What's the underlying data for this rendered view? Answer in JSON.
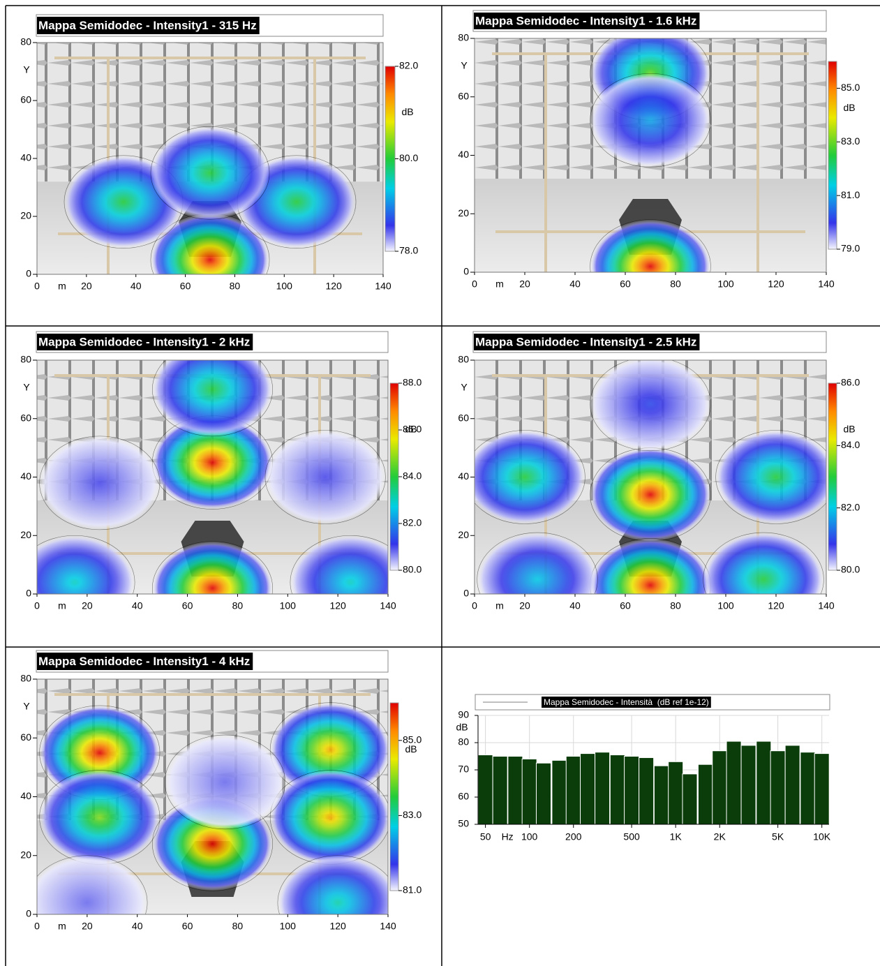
{
  "chart_data": [
    {
      "type": "heatmap",
      "title": "Mappa Semidodec - Intensity1 - 315 Hz",
      "x_unit": "m",
      "ylabel": "Y",
      "xlim": [
        0,
        140
      ],
      "xticks": [
        0,
        20,
        40,
        60,
        80,
        100,
        120,
        140
      ],
      "ylim": [
        0,
        80
      ],
      "yticks": [
        0,
        20,
        40,
        60,
        80
      ],
      "colorbar_unit": "dB",
      "clim": [
        78,
        82
      ],
      "cticks": [
        {
          "value": 82,
          "label": "82.0"
        },
        {
          "value": 80,
          "label": "80.0"
        },
        {
          "value": 78,
          "label": "78.0"
        }
      ],
      "hotspots": [
        {
          "x": 70,
          "y": 5,
          "value": 82
        },
        {
          "x": 35,
          "y": 25,
          "value": 80
        },
        {
          "x": 105,
          "y": 25,
          "value": 80
        },
        {
          "x": 70,
          "y": 35,
          "value": 80
        }
      ]
    },
    {
      "type": "heatmap",
      "title": "Mappa Semidodec - Intensity1 - 1.6 kHz",
      "x_unit": "m",
      "ylabel": "Y",
      "xlim": [
        0,
        140
      ],
      "xticks": [
        0,
        20,
        40,
        60,
        80,
        100,
        120,
        140
      ],
      "ylim": [
        0,
        80
      ],
      "yticks": [
        0,
        20,
        40,
        60,
        80
      ],
      "colorbar_unit": "dB",
      "clim": [
        79,
        86
      ],
      "cticks": [
        {
          "value": 85,
          "label": "85.0"
        },
        {
          "value": 83,
          "label": "83.0"
        },
        {
          "value": 81,
          "label": "81.0"
        },
        {
          "value": 79,
          "label": "79.0"
        }
      ],
      "hotspots": [
        {
          "x": 70,
          "y": 2,
          "value": 86
        },
        {
          "x": 70,
          "y": 68,
          "value": 83
        },
        {
          "x": 70,
          "y": 52,
          "value": 81
        }
      ]
    },
    {
      "type": "heatmap",
      "title": "Mappa Semidodec - Intensity1 - 2 kHz",
      "x_unit": "m",
      "ylabel": "Y",
      "xlim": [
        0,
        140
      ],
      "xticks": [
        0,
        20,
        40,
        60,
        80,
        100,
        120,
        140
      ],
      "ylim": [
        0,
        80
      ],
      "yticks": [
        0,
        20,
        40,
        60,
        80
      ],
      "colorbar_unit": "dB",
      "clim": [
        80,
        88
      ],
      "cticks": [
        {
          "value": 88,
          "label": "88.0"
        },
        {
          "value": 86,
          "label": "86.0"
        },
        {
          "value": 84,
          "label": "84.0"
        },
        {
          "value": 82,
          "label": "82.0"
        },
        {
          "value": 80,
          "label": "80.0"
        }
      ],
      "hotspots": [
        {
          "x": 70,
          "y": 45,
          "value": 88
        },
        {
          "x": 70,
          "y": 70,
          "value": 84
        },
        {
          "x": 70,
          "y": 2,
          "value": 88
        },
        {
          "x": 25,
          "y": 38,
          "value": 81
        },
        {
          "x": 115,
          "y": 40,
          "value": 81
        },
        {
          "x": 15,
          "y": 4,
          "value": 83
        },
        {
          "x": 125,
          "y": 4,
          "value": 83
        }
      ]
    },
    {
      "type": "heatmap",
      "title": "Mappa Semidodec - Intensity1 - 2.5 kHz",
      "x_unit": "m",
      "ylabel": "Y",
      "xlim": [
        0,
        140
      ],
      "xticks": [
        0,
        20,
        40,
        60,
        80,
        100,
        120,
        140
      ],
      "ylim": [
        0,
        80
      ],
      "yticks": [
        0,
        20,
        40,
        60,
        80
      ],
      "colorbar_unit": "dB",
      "clim": [
        80,
        86
      ],
      "cticks": [
        {
          "value": 86,
          "label": "86.0"
        },
        {
          "value": 84,
          "label": "84.0"
        },
        {
          "value": 82,
          "label": "82.0"
        },
        {
          "value": 80,
          "label": "80.0"
        }
      ],
      "hotspots": [
        {
          "x": 70,
          "y": 34,
          "value": 86
        },
        {
          "x": 20,
          "y": 40,
          "value": 83
        },
        {
          "x": 120,
          "y": 40,
          "value": 83
        },
        {
          "x": 70,
          "y": 3,
          "value": 86
        },
        {
          "x": 115,
          "y": 5,
          "value": 83
        },
        {
          "x": 25,
          "y": 5,
          "value": 82
        },
        {
          "x": 70,
          "y": 65,
          "value": 81
        }
      ]
    },
    {
      "type": "heatmap",
      "title": "Mappa Semidodec - Intensity1 - 4 kHz",
      "x_unit": "m",
      "ylabel": "Y",
      "xlim": [
        0,
        140
      ],
      "xticks": [
        0,
        20,
        40,
        60,
        80,
        100,
        120,
        140
      ],
      "ylim": [
        0,
        80
      ],
      "yticks": [
        0,
        20,
        40,
        60,
        80
      ],
      "colorbar_unit": "dB",
      "clim": [
        81,
        86
      ],
      "cticks": [
        {
          "value": 85,
          "label": "85.0"
        },
        {
          "value": 83,
          "label": "83.0"
        },
        {
          "value": 81,
          "label": "81.0"
        }
      ],
      "hotspots": [
        {
          "x": 25,
          "y": 55,
          "value": 86
        },
        {
          "x": 25,
          "y": 33,
          "value": 84
        },
        {
          "x": 117,
          "y": 56,
          "value": 85
        },
        {
          "x": 117,
          "y": 33,
          "value": 85
        },
        {
          "x": 70,
          "y": 24,
          "value": 86
        },
        {
          "x": 20,
          "y": 4,
          "value": 81.5
        },
        {
          "x": 120,
          "y": 4,
          "value": 83
        },
        {
          "x": 75,
          "y": 45,
          "value": 81.5
        }
      ]
    },
    {
      "type": "bar",
      "x": [
        50,
        63,
        80,
        100,
        125,
        160,
        200,
        250,
        315,
        400,
        500,
        630,
        800,
        1000,
        1250,
        1600,
        2000,
        2500,
        3150,
        4000,
        5000,
        6300,
        8000,
        10000
      ],
      "series": [
        {
          "name": "Mappa Semidodec - Intensità  (dB ref 1e-12)",
          "color": "#0b3d0b",
          "values": [
            75.5,
            75,
            75,
            74,
            72.5,
            73.5,
            75,
            76,
            76.5,
            75.5,
            75,
            74.5,
            71.5,
            73,
            68.5,
            72,
            77,
            80.5,
            79,
            80.5,
            77,
            79,
            76.5,
            76
          ]
        }
      ],
      "xlog": true,
      "xlim": [
        44.5,
        11200
      ],
      "xticks": [
        50,
        100,
        200,
        500,
        {
          "value": 1000,
          "label": "1K"
        },
        {
          "value": 2000,
          "label": "2K"
        },
        {
          "value": 5000,
          "label": "5K"
        },
        {
          "value": 10000,
          "label": "10K"
        }
      ],
      "x_unit": "Hz",
      "ylim": [
        50,
        90
      ],
      "yticks": [
        50,
        60,
        70,
        80,
        90
      ],
      "y_unit": "dB",
      "grid": true
    }
  ]
}
